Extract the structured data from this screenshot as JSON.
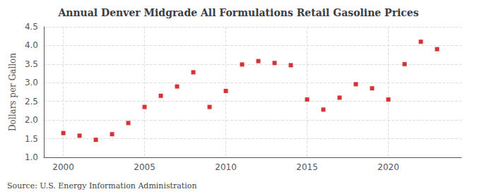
{
  "chart_data": {
    "type": "scatter",
    "title": "Annual Denver Midgrade All Formulations Retail Gasoline Prices",
    "ylabel": "Dollars per Gallon",
    "source": "Source: U.S. Energy Information Administration",
    "x": [
      2000,
      2001,
      2002,
      2003,
      2004,
      2005,
      2006,
      2007,
      2008,
      2009,
      2010,
      2011,
      2012,
      2013,
      2014,
      2015,
      2016,
      2017,
      2018,
      2019,
      2020,
      2021,
      2022,
      2023
    ],
    "values": [
      1.65,
      1.58,
      1.47,
      1.62,
      1.92,
      2.35,
      2.65,
      2.9,
      3.28,
      2.35,
      2.78,
      3.49,
      3.58,
      3.53,
      3.47,
      2.55,
      2.28,
      2.6,
      2.96,
      2.85,
      2.55,
      3.5,
      4.1,
      3.9
    ],
    "color": "#cc0000",
    "marker": "square",
    "xlim": [
      1998.8,
      2024.5
    ],
    "xticks": [
      2000,
      2005,
      2010,
      2015,
      2020
    ],
    "ylim": [
      1.0,
      4.5
    ],
    "yticks": [
      {
        "value": 1.0,
        "label": "1.0"
      },
      1.5,
      {
        "value": 2.0,
        "label": "2.0"
      },
      2.5,
      {
        "value": 3.0,
        "label": "3.0"
      },
      3.5,
      {
        "value": 4.0,
        "label": "4.0"
      },
      4.5
    ],
    "grid": true
  }
}
